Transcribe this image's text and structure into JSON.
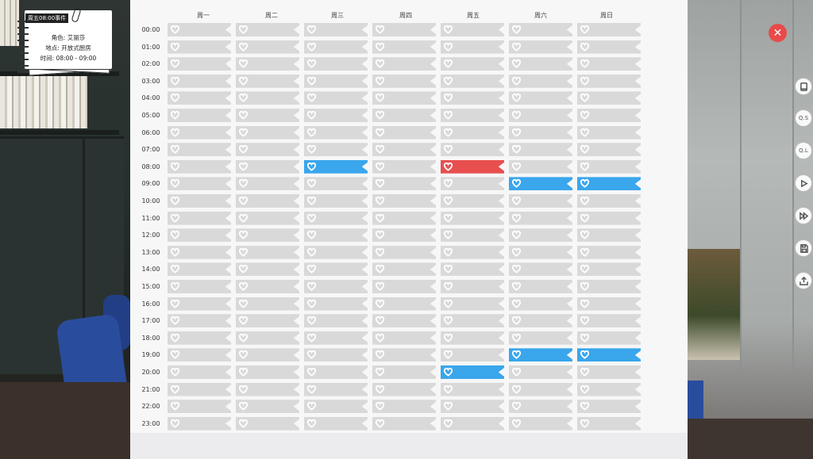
{
  "note_card": {
    "title": "周五08:00事件",
    "character_line": "角色: 艾丽莎",
    "location_line": "地点: 开放式厨房",
    "time_line": "时间: 08:00 - 09:00"
  },
  "days": [
    "周一",
    "周二",
    "周三",
    "周四",
    "周五",
    "周六",
    "周日"
  ],
  "highlighted_day": "周三",
  "times": [
    "00:00",
    "01:00",
    "02:00",
    "03:00",
    "04:00",
    "05:00",
    "06:00",
    "07:00",
    "08:00",
    "09:00",
    "10:00",
    "11:00",
    "12:00",
    "13:00",
    "14:00",
    "15:00",
    "16:00",
    "17:00",
    "18:00",
    "19:00",
    "20:00",
    "21:00",
    "22:00",
    "23:00"
  ],
  "events": [
    {
      "day": "周三",
      "time": "08:00",
      "status": "blue"
    },
    {
      "day": "周五",
      "time": "08:00",
      "status": "red"
    },
    {
      "day": "周六",
      "time": "09:00",
      "status": "blue"
    },
    {
      "day": "周日",
      "time": "09:00",
      "status": "blue"
    },
    {
      "day": "周六",
      "time": "19:00",
      "status": "blue"
    },
    {
      "day": "周日",
      "time": "19:00",
      "status": "blue"
    },
    {
      "day": "周五",
      "time": "20:00",
      "status": "blue"
    }
  ],
  "colors": {
    "empty": "#d9d9da",
    "blue": "#3aa6ec",
    "red": "#e84f4f",
    "close": "#e94a4a"
  },
  "side_buttons": [
    {
      "name": "book-button",
      "icon": "book-icon",
      "label": ""
    },
    {
      "name": "quick-save-button",
      "icon": "",
      "label": "Q.S"
    },
    {
      "name": "quick-load-button",
      "icon": "",
      "label": "Q.L"
    },
    {
      "name": "play-button",
      "icon": "play-icon",
      "label": ""
    },
    {
      "name": "fast-forward-button",
      "icon": "fast-forward-icon",
      "label": ""
    },
    {
      "name": "save-button",
      "icon": "floppy-icon",
      "label": ""
    },
    {
      "name": "share-button",
      "icon": "upload-icon",
      "label": ""
    }
  ],
  "close_icon": "close-icon"
}
